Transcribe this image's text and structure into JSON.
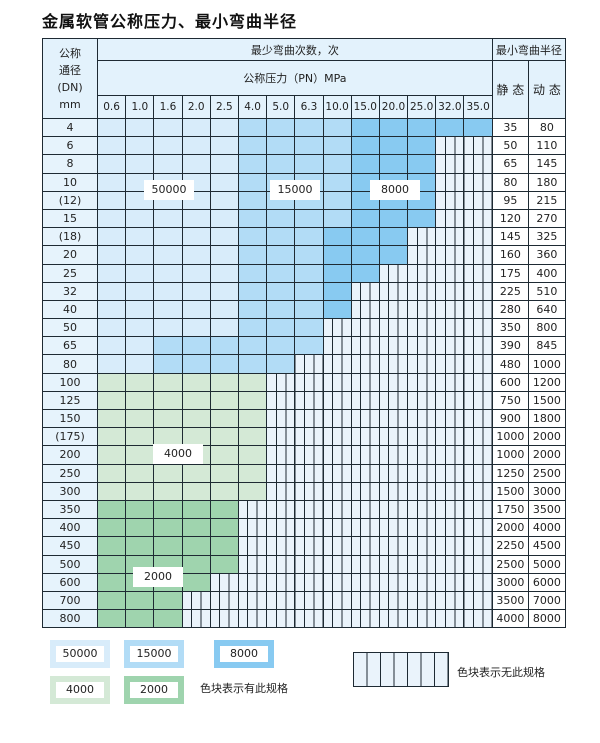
{
  "title": "金属软管公称压力、最小弯曲半径",
  "header": {
    "dn_lines": [
      "公称",
      "通径",
      "(DN)",
      "mm"
    ],
    "bend_count": "最少弯曲次数，次",
    "min_radius": "最小弯曲半径",
    "pressure_title": "公称压力（PN）MPa",
    "static": "静 态",
    "dynamic": "动 态",
    "pressures": [
      "0.6",
      "1.0",
      "1.6",
      "2.0",
      "2.5",
      "4.0",
      "5.0",
      "6.3",
      "10.0",
      "15.0",
      "20.0",
      "25.0",
      "32.0",
      "35.0"
    ]
  },
  "colors": {
    "50000": "#d8ecfa",
    "15000": "#b2dcf6",
    "8000": "#88caf1",
    "4000": "#d4e9d6",
    "2000": "#9fd4ae",
    "none": "#eaf3fb"
  },
  "cell_legend_codes": {
    "a": "50000",
    "b": "15000",
    "c": "8000",
    "d": "4000",
    "e": "2000",
    "x": "none"
  },
  "rows": [
    {
      "dn": "4",
      "static": "35",
      "dynamic": "80",
      "cells": "aaaaabbbbccccc"
    },
    {
      "dn": "6",
      "static": "50",
      "dynamic": "110",
      "cells": "aaaaabbbbcccxx"
    },
    {
      "dn": "8",
      "static": "65",
      "dynamic": "145",
      "cells": "aaaaabbbbcccxx"
    },
    {
      "dn": "10",
      "static": "80",
      "dynamic": "180",
      "cells": "aaaaabbbbcccxx"
    },
    {
      "dn": "(12)",
      "static": "95",
      "dynamic": "215",
      "cells": "aaaaabbbbcccxx"
    },
    {
      "dn": "15",
      "static": "120",
      "dynamic": "270",
      "cells": "aaaaabbbbcccxx"
    },
    {
      "dn": "(18)",
      "static": "145",
      "dynamic": "325",
      "cells": "aaaaabbbcccxxx"
    },
    {
      "dn": "20",
      "static": "160",
      "dynamic": "360",
      "cells": "aaaaabbbcccxxx"
    },
    {
      "dn": "25",
      "static": "175",
      "dynamic": "400",
      "cells": "aaaaabbbccxxxx"
    },
    {
      "dn": "32",
      "static": "225",
      "dynamic": "510",
      "cells": "aaaaabbbcxxxxx"
    },
    {
      "dn": "40",
      "static": "280",
      "dynamic": "640",
      "cells": "aaaaabbbcxxxxx"
    },
    {
      "dn": "50",
      "static": "350",
      "dynamic": "800",
      "cells": "aaaaabbbxxxxxx"
    },
    {
      "dn": "65",
      "static": "390",
      "dynamic": "845",
      "cells": "aabbbbbbxxxxxx"
    },
    {
      "dn": "80",
      "static": "480",
      "dynamic": "1000",
      "cells": "aabbbbbxxxxxxx"
    },
    {
      "dn": "100",
      "static": "600",
      "dynamic": "1200",
      "cells": "ddddddxxxxxxxx"
    },
    {
      "dn": "125",
      "static": "750",
      "dynamic": "1500",
      "cells": "ddddddxxxxxxxx"
    },
    {
      "dn": "150",
      "static": "900",
      "dynamic": "1800",
      "cells": "ddddddxxxxxxxx"
    },
    {
      "dn": "(175)",
      "static": "1000",
      "dynamic": "2000",
      "cells": "ddddddxxxxxxxx"
    },
    {
      "dn": "200",
      "static": "1000",
      "dynamic": "2000",
      "cells": "ddddddxxxxxxxx"
    },
    {
      "dn": "250",
      "static": "1250",
      "dynamic": "2500",
      "cells": "ddddddxxxxxxxx"
    },
    {
      "dn": "300",
      "static": "1500",
      "dynamic": "3000",
      "cells": "ddddddxxxxxxxx"
    },
    {
      "dn": "350",
      "static": "1750",
      "dynamic": "3500",
      "cells": "eeeeexxxxxxxxx"
    },
    {
      "dn": "400",
      "static": "2000",
      "dynamic": "4000",
      "cells": "eeeeexxxxxxxxx"
    },
    {
      "dn": "450",
      "static": "2250",
      "dynamic": "4500",
      "cells": "eeeeexxxxxxxxx"
    },
    {
      "dn": "500",
      "static": "2500",
      "dynamic": "5000",
      "cells": "eeeeexxxxxxxxx"
    },
    {
      "dn": "600",
      "static": "3000",
      "dynamic": "6000",
      "cells": "eeeexxxxxxxxxx"
    },
    {
      "dn": "700",
      "static": "3500",
      "dynamic": "7000",
      "cells": "eeexxxxxxxxxxx"
    },
    {
      "dn": "800",
      "static": "4000",
      "dynamic": "8000",
      "cells": "eeexxxxxxxxxxx"
    }
  ],
  "region_labels": {
    "r50000": "50000",
    "r15000": "15000",
    "r8000": "8000",
    "r4000": "4000",
    "r2000": "2000"
  },
  "legend": {
    "items": [
      "50000",
      "15000",
      "8000",
      "4000",
      "2000"
    ],
    "available_text": "色块表示有此规格",
    "unavailable_text": "色块表示无此规格"
  }
}
